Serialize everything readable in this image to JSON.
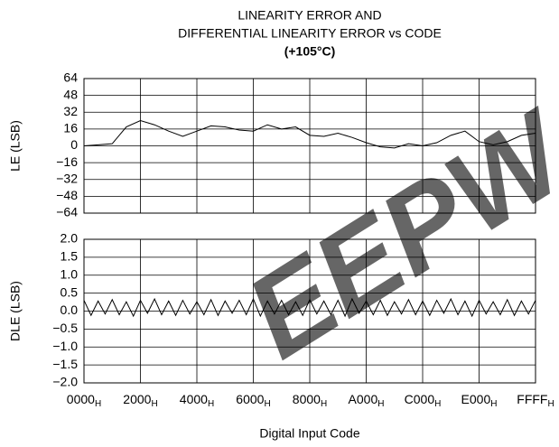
{
  "chart_data": [
    {
      "type": "line",
      "title": [
        "LINEARITY ERROR AND",
        "DIFFERENTIAL LINEARITY ERROR vs CODE"
      ],
      "subtitle": "(+105°C)",
      "ylabel": "LE (LSB)",
      "xlim": [
        0,
        65535
      ],
      "xticks": [
        0,
        8192,
        16384,
        24576,
        32768,
        40960,
        49152,
        57344,
        65535
      ],
      "ylim": [
        -64,
        64
      ],
      "yticks": [
        {
          "value": -64,
          "label": "−64"
        },
        {
          "value": -48,
          "label": "−48"
        },
        {
          "value": -32,
          "label": "−32"
        },
        {
          "value": -16,
          "label": "−16"
        },
        0,
        16,
        32,
        48,
        64
      ],
      "grid": true,
      "color": "#000000",
      "x": [
        0,
        2048,
        4096,
        6144,
        8192,
        10240,
        12288,
        14336,
        16384,
        18432,
        20480,
        22528,
        24576,
        26624,
        28672,
        30720,
        32768,
        34816,
        36864,
        38912,
        40960,
        43008,
        45056,
        47104,
        49152,
        51200,
        53248,
        55296,
        57344,
        59392,
        61440,
        63488,
        65535
      ],
      "values": [
        0,
        1,
        2,
        18,
        24,
        20,
        14,
        9,
        14,
        19,
        18,
        15,
        14,
        20,
        16,
        18,
        10,
        9,
        12,
        8,
        3,
        -1,
        -2,
        2,
        0,
        3,
        10,
        14,
        4,
        1,
        4,
        10,
        12
      ]
    },
    {
      "type": "line",
      "ylabel": "DLE (LSB)",
      "xlabel": "Digital Input Code",
      "watermark": "EEPW",
      "watermark_color": "#e03a3a",
      "xlim": [
        0,
        65535
      ],
      "xticks": [
        {
          "value": 0,
          "label": "0000"
        },
        {
          "value": 8192,
          "label": "2000"
        },
        {
          "value": 16384,
          "label": "4000"
        },
        {
          "value": 24576,
          "label": "6000"
        },
        {
          "value": 32768,
          "label": "8000"
        },
        {
          "value": 40960,
          "label": "A000"
        },
        {
          "value": 49152,
          "label": "C000"
        },
        {
          "value": 57344,
          "label": "E000"
        },
        {
          "value": 65535,
          "label": "FFFF"
        }
      ],
      "xtick_subscript": "H",
      "ylim": [
        -2,
        2
      ],
      "yticks": [
        {
          "value": -2,
          "label": "−2.0"
        },
        {
          "value": -1.5,
          "label": "−1.5"
        },
        {
          "value": -1,
          "label": "−1.0"
        },
        {
          "value": -0.5,
          "label": "−0.5"
        },
        {
          "value": 0,
          "label": "0.0"
        },
        {
          "value": 0.5,
          "label": "0.5"
        },
        {
          "value": 1,
          "label": "1.0"
        },
        {
          "value": 1.5,
          "label": "1.5"
        },
        {
          "value": 2,
          "label": "2.0"
        }
      ],
      "grid": true,
      "color": "#000000",
      "x": [
        0,
        1024,
        2048,
        3072,
        4096,
        5120,
        6144,
        7168,
        8192,
        9216,
        10240,
        11264,
        12288,
        13312,
        14336,
        15360,
        16384,
        17408,
        18432,
        19456,
        20480,
        21504,
        22528,
        23552,
        24576,
        25600,
        26624,
        27648,
        28672,
        29696,
        30720,
        31744,
        32768,
        33792,
        34816,
        35840,
        36864,
        37888,
        38912,
        39936,
        40960,
        41984,
        43008,
        44032,
        45056,
        46080,
        47104,
        48128,
        49152,
        50176,
        51200,
        52224,
        53248,
        54272,
        55296,
        56320,
        57344,
        58368,
        59392,
        60416,
        61440,
        62464,
        63488,
        64512,
        65535
      ],
      "values": [
        0.3,
        -0.12,
        0.28,
        -0.08,
        0.32,
        -0.1,
        0.26,
        -0.14,
        0.3,
        -0.06,
        0.34,
        -0.1,
        0.28,
        -0.12,
        0.3,
        -0.08,
        0.26,
        -0.1,
        0.32,
        -0.12,
        0.28,
        -0.06,
        0.3,
        -0.1,
        0.34,
        -0.14,
        0.28,
        -0.08,
        0.3,
        -0.1,
        0.26,
        -0.12,
        0.32,
        -0.08,
        0.28,
        -0.1,
        0.3,
        -0.14,
        0.34,
        -0.06,
        0.28,
        -0.1,
        0.3,
        -0.12,
        0.26,
        -0.08,
        0.32,
        -0.1,
        0.28,
        -0.12,
        0.3,
        -0.06,
        0.34,
        -0.1,
        0.28,
        -0.14,
        0.3,
        -0.08,
        0.26,
        -0.1,
        0.32,
        -0.12,
        0.28,
        -0.08,
        0.3
      ]
    }
  ]
}
